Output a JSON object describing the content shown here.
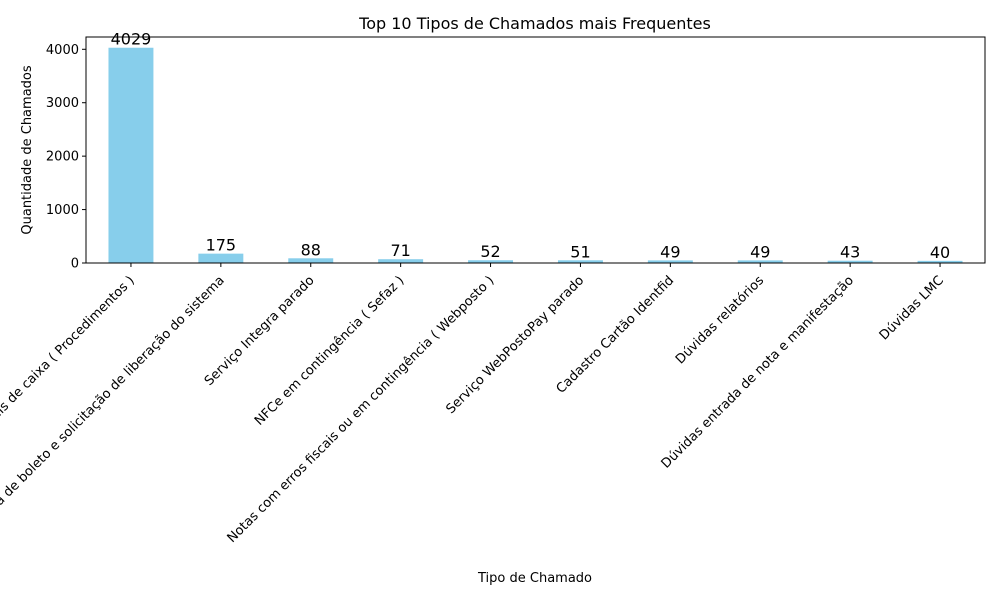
{
  "chart_data": {
    "type": "bar",
    "title": "Top 10 Tipos de Chamados mais Frequentes",
    "xlabel": "Tipo de Chamado",
    "ylabel": "Quantidade de Chamados",
    "categories": [
      "Dúvidas gerais de caixa ( Procedimentos )",
      "Baixa de boleto e solicitação de liberação do sistema",
      "Serviço Integra parado",
      "NFCe em contingência ( Sefaz )",
      "Notas com erros fiscais ou em contingência  ( Webposto )",
      "Serviço WebPostoPay parado",
      "Cadastro Cartão Identfid",
      "Dúvidas relatórios",
      "Dúvidas entrada de nota e manifestação",
      "Dúvidas LMC"
    ],
    "values": [
      4029,
      175,
      88,
      71,
      52,
      51,
      49,
      49,
      43,
      40
    ],
    "data_labels": [
      "4029",
      "175",
      "88",
      "71",
      "52",
      "51",
      "49",
      "49",
      "43",
      "40"
    ],
    "ylim": [
      0,
      4230
    ],
    "yticks": [
      0,
      1000,
      2000,
      3000,
      4000
    ],
    "ytick_labels": [
      "0",
      "1000",
      "2000",
      "3000",
      "4000"
    ],
    "bar_color": "#87ceeb",
    "grid": false,
    "legend": "none"
  }
}
